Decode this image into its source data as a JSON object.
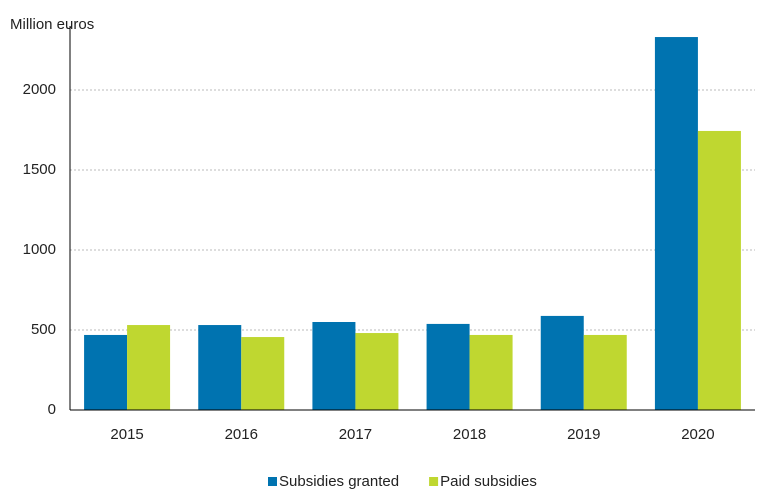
{
  "chart_data": {
    "type": "bar",
    "y_label": "Million euros",
    "categories": [
      "2015",
      "2016",
      "2017",
      "2018",
      "2019",
      "2020"
    ],
    "series": [
      {
        "name": "Subsidies granted",
        "color": "#0073b0",
        "values": [
          469,
          531,
          550,
          538,
          588,
          2331
        ]
      },
      {
        "name": "Paid subsidies",
        "color": "#bfd730",
        "values": [
          531,
          456,
          481,
          469,
          469,
          1744
        ]
      }
    ],
    "ylim": [
      0,
      2400
    ],
    "yticks": [
      0,
      500,
      1000,
      1500,
      2000
    ],
    "grid": true,
    "legend": "bottom"
  }
}
